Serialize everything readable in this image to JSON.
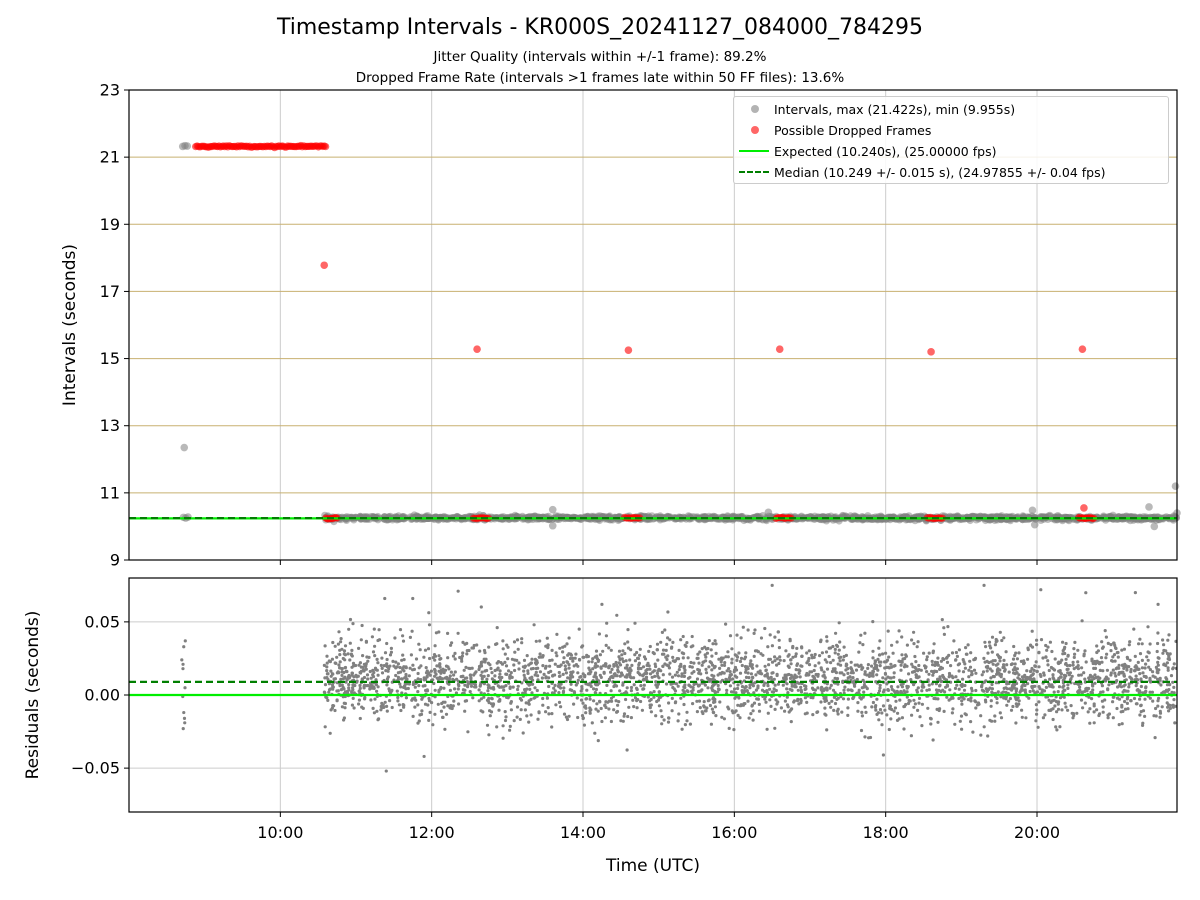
{
  "title": "Timestamp Intervals - KR000S_20241127_084000_784295",
  "subtitle_1": "Jitter Quality (intervals within +/-1 frame): 89.2%",
  "subtitle_2": "Dropped Frame Rate (intervals >1 frames late within 50 FF files): 13.6%",
  "colors": {
    "intervals": "#808080",
    "dropped": "#ff0000",
    "expected": "#00ee00",
    "median": "#007f00",
    "hgrid_top": "#c8b070",
    "grid": "#cccccc"
  },
  "chart_data": [
    {
      "type": "scatter",
      "panel": "top",
      "ylabel": "Intervals (seconds)",
      "ylim": [
        9,
        23
      ],
      "yticks": [
        "9",
        "11",
        "13",
        "15",
        "17",
        "19",
        "21",
        "23"
      ],
      "xlim_hours": [
        8.0,
        21.85
      ],
      "grid": true,
      "legend_placement": "top-right",
      "legend": [
        {
          "label": "Intervals, max (21.422s), min (9.955s)",
          "kind": "dot",
          "color": "#808080"
        },
        {
          "label": "Possible Dropped Frames",
          "kind": "dot",
          "color": "#ff0000"
        },
        {
          "label": "Expected (10.240s), (25.00000 fps)",
          "kind": "line",
          "color": "#00ee00"
        },
        {
          "label": "Median (10.249 +/- 0.015 s), (24.97855 +/- 0.04 fps)",
          "kind": "dashed",
          "color": "#007f00"
        }
      ],
      "series": [
        {
          "name": "Intervals, max (21.422s), min (9.955s)",
          "points": [
            {
              "x": 8.71,
              "y": 21.32
            },
            {
              "x": 8.74,
              "y": 21.34
            },
            {
              "x": 8.77,
              "y": 21.33
            },
            {
              "x": 8.73,
              "y": 12.35
            },
            {
              "x": 8.72,
              "y": 10.27
            },
            {
              "x": 8.75,
              "y": 10.25
            },
            {
              "x": 8.78,
              "y": 10.28
            },
            {
              "x": 11.15,
              "y": 10.28
            },
            {
              "x": 11.8,
              "y": 10.22
            },
            {
              "x": 12.3,
              "y": 10.26
            },
            {
              "x": 12.95,
              "y": 10.28
            },
            {
              "x": 13.6,
              "y": 10.5
            },
            {
              "x": 13.6,
              "y": 10.02
            },
            {
              "x": 14.2,
              "y": 10.3
            },
            {
              "x": 15.2,
              "y": 10.25
            },
            {
              "x": 16.45,
              "y": 10.42
            },
            {
              "x": 17.2,
              "y": 10.26
            },
            {
              "x": 18.1,
              "y": 10.24
            },
            {
              "x": 19.3,
              "y": 10.27
            },
            {
              "x": 19.94,
              "y": 10.48
            },
            {
              "x": 19.97,
              "y": 10.05
            },
            {
              "x": 20.15,
              "y": 10.3
            },
            {
              "x": 20.88,
              "y": 10.3
            },
            {
              "x": 21.4,
              "y": 10.22
            },
            {
              "x": 21.48,
              "y": 10.58
            },
            {
              "x": 21.55,
              "y": 10.0
            },
            {
              "x": 21.83,
              "y": 11.2
            },
            {
              "x": 21.85,
              "y": 10.4
            }
          ],
          "dense_band": {
            "x_start": 10.58,
            "x_end": 21.85,
            "y_center": 10.249,
            "y_spread": 0.03
          }
        },
        {
          "name": "Possible Dropped Frames",
          "points": [
            {
              "x": 10.58,
              "y": 17.78
            },
            {
              "x": 12.6,
              "y": 15.28
            },
            {
              "x": 14.6,
              "y": 15.25
            },
            {
              "x": 16.6,
              "y": 15.28
            },
            {
              "x": 18.6,
              "y": 15.2
            },
            {
              "x": 20.6,
              "y": 15.28
            },
            {
              "x": 20.62,
              "y": 10.55
            }
          ],
          "clusters": [
            {
              "x_start": 8.88,
              "x_end": 10.6,
              "y": 21.32,
              "count": 90
            },
            {
              "x_start": 10.6,
              "x_end": 10.75,
              "y": 10.25,
              "count": 9
            },
            {
              "x_start": 12.55,
              "x_end": 12.75,
              "y": 10.25,
              "count": 10
            },
            {
              "x_start": 14.55,
              "x_end": 14.75,
              "y": 10.25,
              "count": 10
            },
            {
              "x_start": 16.55,
              "x_end": 16.75,
              "y": 10.25,
              "count": 10
            },
            {
              "x_start": 18.55,
              "x_end": 18.75,
              "y": 10.25,
              "count": 10
            },
            {
              "x_start": 20.55,
              "x_end": 20.75,
              "y": 10.25,
              "count": 12
            }
          ]
        },
        {
          "name": "Expected (10.240s), (25.00000 fps)",
          "type": "hline",
          "y": 10.24
        },
        {
          "name": "Median (10.249 +/- 0.015 s), (24.97855 +/- 0.04 fps)",
          "type": "hline",
          "y": 10.249
        }
      ]
    },
    {
      "type": "scatter",
      "panel": "bottom",
      "xlabel": "Time (UTC)",
      "ylabel": "Residuals (seconds)",
      "ylim": [
        -0.08,
        0.08
      ],
      "yticks": [
        "0.05",
        "0.00",
        "−0.05"
      ],
      "ytick_values": [
        0.05,
        0.0,
        -0.05
      ],
      "xlim_hours": [
        8.0,
        21.85
      ],
      "xticks": [
        "10:00",
        "12:00",
        "14:00",
        "16:00",
        "18:00",
        "20:00"
      ],
      "xtick_hours": [
        10,
        12,
        14,
        16,
        18,
        20
      ],
      "grid": true,
      "expected_residual": 0.0,
      "median_residual": 0.009,
      "residual_points": {
        "early_cluster_x": 8.72,
        "early_values": [
          0.037,
          0.033,
          0.024,
          0.021,
          0.018,
          0.005,
          -0.001,
          -0.012,
          -0.016,
          -0.019,
          -0.023
        ],
        "band_x_start": 10.58,
        "band_x_end": 21.85,
        "mean": 0.01,
        "sd": 0.014,
        "count": 3300,
        "outliers": [
          {
            "x": 11.4,
            "y": -0.052
          },
          {
            "x": 11.38,
            "y": 0.066
          },
          {
            "x": 11.75,
            "y": 0.066
          },
          {
            "x": 12.35,
            "y": 0.071
          },
          {
            "x": 11.9,
            "y": -0.042
          },
          {
            "x": 17.97,
            "y": -0.041
          },
          {
            "x": 14.25,
            "y": 0.062
          },
          {
            "x": 16.5,
            "y": 0.075
          },
          {
            "x": 19.3,
            "y": 0.075
          },
          {
            "x": 20.05,
            "y": 0.072
          },
          {
            "x": 21.3,
            "y": 0.07
          },
          {
            "x": 21.6,
            "y": 0.062
          }
        ]
      }
    }
  ]
}
